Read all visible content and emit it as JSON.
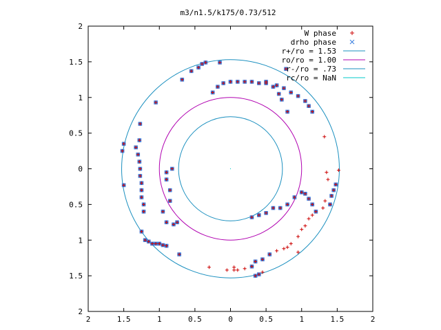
{
  "chart_data": {
    "type": "scatter",
    "title": "m3/n1.5/k175/0.73/512",
    "xlabel": "",
    "ylabel": "",
    "xlim": [
      -2,
      2
    ],
    "ylim": [
      -2,
      2
    ],
    "x_tick_values": [
      -2,
      -1.5,
      -1,
      -0.5,
      0,
      0.5,
      1,
      1.5,
      2
    ],
    "x_tick_labels": [
      "2",
      "1.5",
      "1",
      "0.5",
      "0",
      "0.5",
      "1",
      "1.5",
      "2"
    ],
    "y_tick_values": [
      2,
      1.5,
      1,
      0.5,
      0,
      -0.5,
      -1,
      -1.5,
      -2
    ],
    "y_tick_labels": [
      "2",
      "1.5",
      "1",
      "0.5",
      "0",
      "0.5",
      "1",
      "1.5",
      "2"
    ],
    "grid": false,
    "legend_position": "top-right",
    "colors": {
      "w_phase": "#cc0000",
      "drho_phase": "#3a7fe0",
      "r_plus": "#1a8fbf",
      "r_o": "#b000b0",
      "r_minus": "#1a8fbf",
      "r_c": "#00c8c8"
    },
    "legend": [
      {
        "label": "W phase",
        "marker": "+",
        "color": "#cc0000"
      },
      {
        "label": "drho phase",
        "marker": "x",
        "color": "#3a7fe0"
      },
      {
        "label": "r+/ro = 1.53",
        "marker": "line",
        "color": "#1a8fbf"
      },
      {
        "label": "ro/ro = 1.00",
        "marker": "line",
        "color": "#b000b0"
      },
      {
        "label": "r-/ro = .73",
        "marker": "line",
        "color": "#1a8fbf"
      },
      {
        "label": "rc/ro = NaN",
        "marker": "line",
        "color": "#00c8c8"
      }
    ],
    "circles": [
      {
        "name": "r+/ro = 1.53",
        "radius": 1.53,
        "color": "#1a8fbf"
      },
      {
        "name": "ro/ro = 1.00",
        "radius": 1.0,
        "color": "#b000b0"
      },
      {
        "name": "r-/ro = .73",
        "radius": 0.73,
        "color": "#1a8fbf"
      }
    ],
    "series": [
      {
        "name": "W phase",
        "marker": "+",
        "points": [
          [
            -0.75,
            -0.75
          ],
          [
            -0.8,
            -0.78
          ],
          [
            -0.9,
            -0.75
          ],
          [
            -0.95,
            -0.6
          ],
          [
            -0.85,
            -0.45
          ],
          [
            -0.85,
            -0.3
          ],
          [
            -0.9,
            -0.15
          ],
          [
            -0.9,
            -0.05
          ],
          [
            -0.82,
            0
          ],
          [
            -1.1,
            -1.05
          ],
          [
            -1.05,
            -1.05
          ],
          [
            -1.0,
            -1.05
          ],
          [
            -0.95,
            -1.07
          ],
          [
            -0.9,
            -1.08
          ],
          [
            -1.15,
            -1.02
          ],
          [
            -1.2,
            -1.0
          ],
          [
            -0.72,
            -1.2
          ],
          [
            -1.25,
            -0.88
          ],
          [
            -1.22,
            -0.6
          ],
          [
            -1.22,
            -0.5
          ],
          [
            -1.25,
            -0.4
          ],
          [
            -1.25,
            -0.3
          ],
          [
            -1.25,
            -0.2
          ],
          [
            -1.27,
            -0.1
          ],
          [
            -1.27,
            0.0
          ],
          [
            -1.28,
            0.1
          ],
          [
            -1.3,
            0.2
          ],
          [
            -1.33,
            0.3
          ],
          [
            -1.28,
            0.4
          ],
          [
            -1.27,
            0.63
          ],
          [
            -1.5,
            -0.23
          ],
          [
            -1.52,
            0.25
          ],
          [
            -1.5,
            0.35
          ],
          [
            -1.05,
            0.93
          ],
          [
            -0.68,
            1.25
          ],
          [
            -0.55,
            1.37
          ],
          [
            -0.45,
            1.42
          ],
          [
            -0.4,
            1.47
          ],
          [
            -0.35,
            1.49
          ],
          [
            -0.15,
            1.49
          ],
          [
            -0.25,
            1.07
          ],
          [
            -0.18,
            1.15
          ],
          [
            -0.1,
            1.2
          ],
          [
            0.0,
            1.22
          ],
          [
            0.1,
            1.22
          ],
          [
            0.2,
            1.22
          ],
          [
            0.3,
            1.22
          ],
          [
            0.4,
            1.2
          ],
          [
            0.5,
            1.2
          ],
          [
            0.6,
            1.15
          ],
          [
            0.68,
            1.05
          ],
          [
            0.72,
            0.97
          ],
          [
            0.8,
            0.8
          ],
          [
            0.5,
            1.22
          ],
          [
            0.65,
            1.17
          ],
          [
            0.75,
            1.13
          ],
          [
            0.85,
            1.07
          ],
          [
            0.95,
            1.02
          ],
          [
            1.05,
            0.95
          ],
          [
            1.1,
            0.88
          ],
          [
            1.15,
            0.8
          ],
          [
            0.78,
            1.4
          ],
          [
            0.3,
            -0.68
          ],
          [
            0.4,
            -0.65
          ],
          [
            0.5,
            -0.62
          ],
          [
            0.6,
            -0.55
          ],
          [
            0.7,
            -0.55
          ],
          [
            0.8,
            -0.5
          ],
          [
            0.9,
            -0.4
          ],
          [
            1.0,
            -0.33
          ],
          [
            1.05,
            -0.35
          ],
          [
            1.1,
            -0.42
          ],
          [
            1.15,
            -0.5
          ],
          [
            1.2,
            -0.6
          ],
          [
            1.4,
            -0.5
          ],
          [
            1.42,
            -0.38
          ],
          [
            1.45,
            -0.3
          ],
          [
            1.48,
            -0.22
          ],
          [
            1.52,
            -0.02
          ],
          [
            1.35,
            -0.05
          ],
          [
            1.37,
            -0.15
          ],
          [
            1.33,
            -0.45
          ],
          [
            1.3,
            -0.55
          ],
          [
            1.15,
            -0.65
          ],
          [
            1.1,
            -0.7
          ],
          [
            1.05,
            -0.8
          ],
          [
            1.0,
            -0.85
          ],
          [
            0.95,
            -0.95
          ],
          [
            0.85,
            -1.05
          ],
          [
            0.8,
            -1.1
          ],
          [
            0.75,
            -1.12
          ],
          [
            0.65,
            -1.15
          ],
          [
            0.55,
            -1.2
          ],
          [
            0.45,
            -1.27
          ],
          [
            0.35,
            -1.3
          ],
          [
            0.3,
            -1.37
          ],
          [
            0.2,
            -1.4
          ],
          [
            0.1,
            -1.42
          ],
          [
            0.05,
            -1.42
          ],
          [
            0.45,
            -1.45
          ],
          [
            0.4,
            -1.48
          ],
          [
            0.35,
            -1.5
          ],
          [
            0.95,
            -1.17
          ],
          [
            1.32,
            0.45
          ],
          [
            0.05,
            -1.38
          ],
          [
            -0.05,
            -1.42
          ],
          [
            -0.3,
            -1.38
          ]
        ]
      },
      {
        "name": "drho phase",
        "marker": "x",
        "points": [
          [
            -0.75,
            -0.75
          ],
          [
            -0.8,
            -0.78
          ],
          [
            -0.9,
            -0.75
          ],
          [
            -0.95,
            -0.6
          ],
          [
            -0.85,
            -0.45
          ],
          [
            -0.85,
            -0.3
          ],
          [
            -0.9,
            -0.15
          ],
          [
            -0.9,
            -0.05
          ],
          [
            -0.82,
            0
          ],
          [
            -1.1,
            -1.05
          ],
          [
            -1.05,
            -1.05
          ],
          [
            -1.0,
            -1.05
          ],
          [
            -0.95,
            -1.07
          ],
          [
            -0.9,
            -1.08
          ],
          [
            -1.15,
            -1.02
          ],
          [
            -1.2,
            -1.0
          ],
          [
            -0.72,
            -1.2
          ],
          [
            -1.25,
            -0.88
          ],
          [
            -1.22,
            -0.6
          ],
          [
            -1.22,
            -0.5
          ],
          [
            -1.25,
            -0.4
          ],
          [
            -1.25,
            -0.3
          ],
          [
            -1.25,
            -0.2
          ],
          [
            -1.27,
            -0.1
          ],
          [
            -1.27,
            0.0
          ],
          [
            -1.28,
            0.1
          ],
          [
            -1.3,
            0.2
          ],
          [
            -1.33,
            0.3
          ],
          [
            -1.28,
            0.4
          ],
          [
            -1.27,
            0.63
          ],
          [
            -1.5,
            -0.23
          ],
          [
            -1.52,
            0.25
          ],
          [
            -1.5,
            0.35
          ],
          [
            -1.05,
            0.93
          ],
          [
            -0.68,
            1.25
          ],
          [
            -0.55,
            1.37
          ],
          [
            -0.45,
            1.42
          ],
          [
            -0.4,
            1.47
          ],
          [
            -0.35,
            1.49
          ],
          [
            -0.15,
            1.49
          ],
          [
            -0.25,
            1.07
          ],
          [
            -0.18,
            1.15
          ],
          [
            -0.1,
            1.2
          ],
          [
            0.0,
            1.22
          ],
          [
            0.1,
            1.22
          ],
          [
            0.2,
            1.22
          ],
          [
            0.3,
            1.22
          ],
          [
            0.4,
            1.2
          ],
          [
            0.5,
            1.2
          ],
          [
            0.6,
            1.15
          ],
          [
            0.68,
            1.05
          ],
          [
            0.72,
            0.97
          ],
          [
            0.8,
            0.8
          ],
          [
            0.5,
            1.22
          ],
          [
            0.65,
            1.17
          ],
          [
            0.75,
            1.13
          ],
          [
            0.85,
            1.07
          ],
          [
            0.95,
            1.02
          ],
          [
            1.05,
            0.95
          ],
          [
            1.1,
            0.88
          ],
          [
            1.15,
            0.8
          ],
          [
            0.78,
            1.4
          ],
          [
            0.3,
            -0.68
          ],
          [
            0.4,
            -0.65
          ],
          [
            0.5,
            -0.62
          ],
          [
            0.6,
            -0.55
          ],
          [
            0.7,
            -0.55
          ],
          [
            0.8,
            -0.5
          ],
          [
            0.9,
            -0.4
          ],
          [
            1.0,
            -0.33
          ],
          [
            1.05,
            -0.35
          ],
          [
            1.1,
            -0.42
          ],
          [
            1.15,
            -0.5
          ],
          [
            1.2,
            -0.6
          ],
          [
            1.4,
            -0.5
          ],
          [
            1.42,
            -0.38
          ],
          [
            1.45,
            -0.3
          ],
          [
            1.48,
            -0.22
          ],
          [
            0.35,
            -1.3
          ],
          [
            0.3,
            -1.37
          ],
          [
            0.45,
            -1.27
          ],
          [
            0.55,
            -1.2
          ],
          [
            0.4,
            -1.48
          ],
          [
            0.35,
            -1.5
          ]
        ]
      }
    ]
  }
}
